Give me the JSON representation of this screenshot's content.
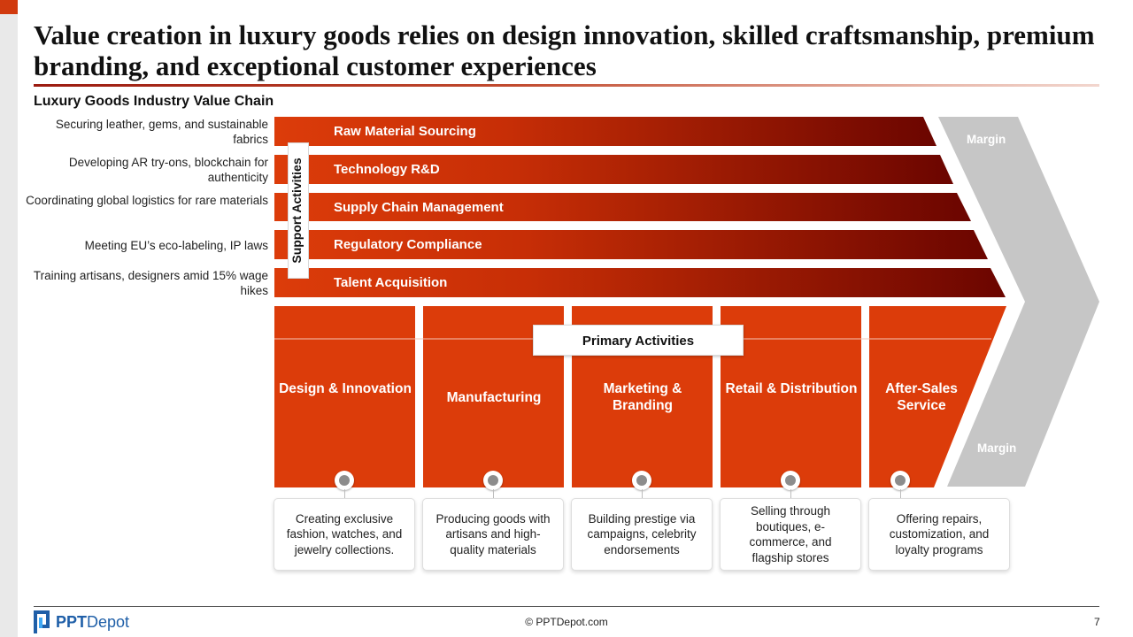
{
  "title": "Value creation in luxury goods relies on design innovation, skilled craftsmanship, premium branding, and exceptional customer experiences",
  "subtitle": "Luxury Goods Industry Value Chain",
  "support_label": "Support Activities",
  "primary_label": "Primary Activities",
  "margin_labels": [
    "Margin",
    "Margin"
  ],
  "support_activities": [
    {
      "label": "Raw Material Sourcing",
      "description": "Securing leather, gems, and sustainable fabrics"
    },
    {
      "label": "Technology R&D",
      "description": "Developing AR try-ons, blockchain for authenticity"
    },
    {
      "label": "Supply Chain Management",
      "description": "Coordinating global logistics for rare materials"
    },
    {
      "label": "Regulatory Compliance",
      "description": "Meeting EU’s eco-labeling, IP laws"
    },
    {
      "label": "Talent Acquisition",
      "description": "Training artisans, designers amid 15% wage hikes"
    }
  ],
  "primary_activities": [
    {
      "label": "Design & Innovation",
      "description": "Creating exclusive fashion, watches, and jewelry collections."
    },
    {
      "label": "Manufacturing",
      "description": "Producing goods with artisans and high-quality materials"
    },
    {
      "label": "Marketing & Branding",
      "description": "Building prestige via campaigns, celebrity endorsements"
    },
    {
      "label": "Retail & Distribution",
      "description": "Selling through boutiques, e-commerce, and flagship stores"
    },
    {
      "label": "After-Sales Service",
      "description": "Offering repairs, customization, and loyalty programs"
    }
  ],
  "footer": {
    "brand_bold": "PPT",
    "brand_rest": "Depot",
    "copyright": "© PPTDepot.com",
    "page_number": "7"
  },
  "colors": {
    "accent": "#d13a0e",
    "bar_start": "#dc3c0a",
    "bar_end": "#6b0500",
    "margin_gray": "#c6c6c6",
    "logo_blue": "#1f5fa8"
  }
}
